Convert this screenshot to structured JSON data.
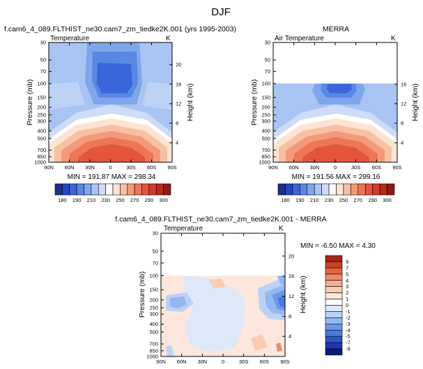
{
  "figure_title": "DJF",
  "chart_data": [
    {
      "type": "heatmap",
      "panel": "model",
      "title": "f.cam6_4_089.FLTHIST_ne30.cam7_zm_tiedke2K.001 (yrs 1995-2003)",
      "variable": "Temperature",
      "units": "K",
      "xlabel": "",
      "ylabel": "Pressure (mb)",
      "y2label": "Height (km)",
      "x_ticks": [
        "90N",
        "60N",
        "30N",
        "0",
        "30S",
        "60S",
        "90S"
      ],
      "y_ticks": [
        "30",
        "50",
        "70",
        "100",
        "150",
        "200",
        "250",
        "300",
        "400",
        "500",
        "700",
        "850",
        "1000"
      ],
      "y2_ticks": [
        "20",
        "16",
        "12",
        "8",
        "4"
      ],
      "stats": "MIN = 191.87  MAX = 298.34",
      "min": 191.87,
      "max": 298.34,
      "colorbar_ticks": [
        "180",
        "190",
        "210",
        "230",
        "250",
        "270",
        "290",
        "300"
      ]
    },
    {
      "type": "heatmap",
      "panel": "obs",
      "title": "MERRA",
      "variable": "Air Temperature",
      "units": "K",
      "xlabel": "",
      "ylabel": "Pressure (mb)",
      "y2label": "Height (km)",
      "x_ticks": [
        "90N",
        "60N",
        "30N",
        "0",
        "30S",
        "60S",
        "90S"
      ],
      "y_ticks": [
        "30",
        "50",
        "70",
        "100",
        "150",
        "200",
        "250",
        "300",
        "400",
        "500",
        "700",
        "850",
        "1000"
      ],
      "y2_ticks": [
        "16",
        "12",
        "8",
        "4"
      ],
      "stats": "MIN = 191.56  MAX = 299.16",
      "min": 191.56,
      "max": 299.16,
      "colorbar_ticks": [
        "180",
        "190",
        "210",
        "230",
        "250",
        "270",
        "290",
        "300"
      ]
    },
    {
      "type": "heatmap",
      "panel": "difference",
      "title": "f.cam6_4_089.FLTHIST_ne30.cam7_zm_tiedke2K.001 - MERRA",
      "variable": "Temperature",
      "units": "K",
      "xlabel": "",
      "ylabel": "Pressure (mb)",
      "y2label": "Height (km)",
      "x_ticks": [
        "90N",
        "60N",
        "30N",
        "0",
        "30S",
        "60S",
        "90S"
      ],
      "y_ticks": [
        "30",
        "50",
        "70",
        "100",
        "150",
        "200",
        "250",
        "300",
        "400",
        "500",
        "700",
        "850",
        "1000"
      ],
      "y2_ticks": [
        "20",
        "16",
        "12",
        "8",
        "4"
      ],
      "stats": "MIN = -6.50  MAX =  4.30",
      "min": -6.5,
      "max": 4.3,
      "colorbar_ticks": [
        "9",
        "7",
        "5",
        "4",
        "3",
        "2",
        "1",
        "0",
        "-1",
        "-2",
        "-3",
        "-4",
        "-5",
        "-7",
        "-9"
      ]
    }
  ],
  "colors": {
    "abs_scale": [
      "#1f2f8a",
      "#2745c2",
      "#3a66d9",
      "#5a87e3",
      "#7ea6ec",
      "#a8c4f3",
      "#cfdcf8",
      "#ffffff",
      "#fde3d4",
      "#f8c0a3",
      "#f29a79",
      "#ec7655",
      "#e4553a",
      "#d43b27",
      "#b8281c",
      "#8c1b14"
    ],
    "diff_scale": [
      "#0c1a7a",
      "#1d36b0",
      "#2f55cf",
      "#4c78de",
      "#6d98e8",
      "#95b7f1",
      "#bcd1f7",
      "#dde8fb",
      "#ffffff",
      "#fde7dc",
      "#f9ccb6",
      "#f3ad8f",
      "#ec8a69",
      "#e0653f",
      "#cc4226",
      "#a5231a"
    ]
  }
}
